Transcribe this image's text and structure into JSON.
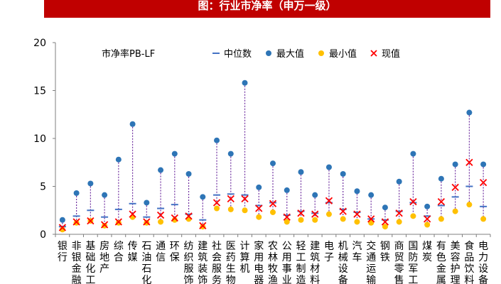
{
  "title": "图：行业市净率（申万一级）",
  "chart_data": {
    "type": "scatter",
    "ylim": [
      0,
      20
    ],
    "yticks": [
      0,
      5,
      10,
      15,
      20
    ],
    "ylabel": "市净率PB-LF",
    "grid": false,
    "legend_position": "top",
    "categories": [
      "银行",
      "非银金融",
      "基础化工",
      "房地产",
      "综合",
      "传媒",
      "石油石化",
      "通信",
      "环保",
      "纺织服饰",
      "建筑装饰",
      "社会服务",
      "医药生物",
      "计算机",
      "家用电器",
      "农林牧渔",
      "公用事业",
      "轻工制造",
      "建筑材料",
      "电子",
      "机械设备",
      "汽车",
      "交通运输",
      "钢铁",
      "商贸零售",
      "国防军工",
      "煤炭",
      "有色金属",
      "美容护理",
      "食品饮料",
      "电力设备"
    ],
    "series": [
      {
        "name": "中位数",
        "marker": "dash",
        "color": "#4472c4",
        "values": [
          0.8,
          1.9,
          2.5,
          1.8,
          2.6,
          3.2,
          1.8,
          2.7,
          3.1,
          2.1,
          1.5,
          4.1,
          4.2,
          4.1,
          3.0,
          3.3,
          2.0,
          2.4,
          2.2,
          3.3,
          2.6,
          2.3,
          1.6,
          1.5,
          2.4,
          3.3,
          1.9,
          3.0,
          3.9,
          5.0,
          2.9
        ]
      },
      {
        "name": "最大值",
        "marker": "circle",
        "color": "#2e75b6",
        "values": [
          1.5,
          4.3,
          5.3,
          4.1,
          7.8,
          11.5,
          3.3,
          6.7,
          8.4,
          6.3,
          3.9,
          9.8,
          8.4,
          15.8,
          4.9,
          7.4,
          4.6,
          6.5,
          4.1,
          7.0,
          6.3,
          4.5,
          4.1,
          2.8,
          5.5,
          8.4,
          2.9,
          5.8,
          7.3,
          12.7,
          7.3
        ]
      },
      {
        "name": "最小值",
        "marker": "circle",
        "color": "#ffc000",
        "values": [
          0.5,
          1.2,
          1.4,
          0.9,
          1.2,
          1.8,
          1.2,
          1.3,
          1.5,
          1.6,
          0.8,
          2.7,
          2.6,
          2.5,
          1.8,
          2.3,
          1.3,
          1.5,
          1.5,
          2.1,
          1.6,
          1.3,
          1.2,
          0.8,
          1.3,
          1.9,
          1.0,
          1.6,
          2.4,
          3.1,
          1.6
        ]
      },
      {
        "name": "现值",
        "marker": "x",
        "color": "#ff0000",
        "values": [
          0.7,
          1.3,
          1.4,
          1.0,
          1.3,
          2.1,
          1.3,
          2.0,
          1.7,
          1.9,
          0.9,
          3.3,
          3.7,
          3.7,
          2.7,
          3.2,
          1.8,
          2.2,
          2.1,
          3.5,
          2.4,
          2.1,
          1.6,
          1.3,
          2.2,
          3.4,
          1.6,
          3.4,
          4.9,
          7.5,
          5.4
        ]
      }
    ]
  }
}
